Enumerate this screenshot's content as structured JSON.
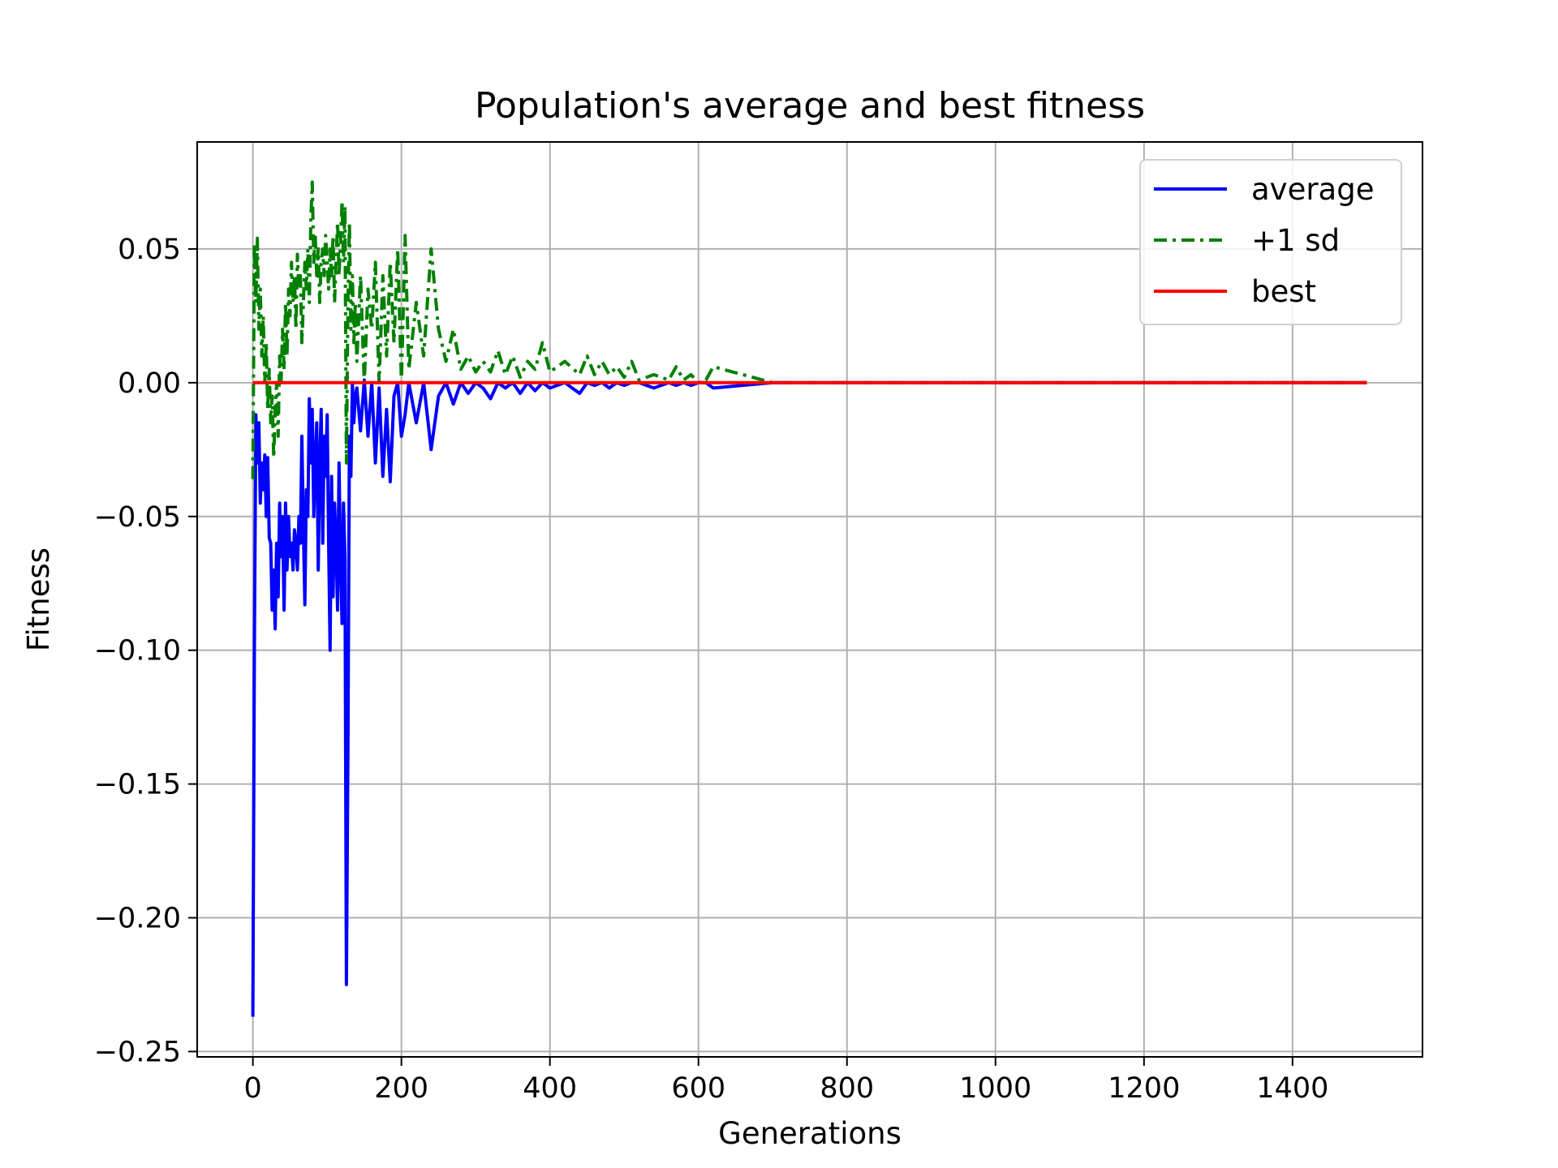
{
  "chart_data": {
    "type": "line",
    "title": "Population's average and best fitness",
    "xlabel": "Generations",
    "ylabel": "Fitness",
    "xlim": [
      -75,
      1575
    ],
    "ylim": [
      -0.252,
      0.09
    ],
    "xticks": [
      0,
      200,
      400,
      600,
      800,
      1000,
      1200,
      1400
    ],
    "yticks": [
      0.05,
      0.0,
      -0.05,
      -0.1,
      -0.15,
      -0.2,
      -0.25
    ],
    "xtick_labels": [
      "0",
      "200",
      "400",
      "600",
      "800",
      "1000",
      "1200",
      "1400"
    ],
    "ytick_labels": [
      "0.05",
      "0.00",
      "−0.05",
      "−0.10",
      "−0.15",
      "−0.20",
      "−0.25"
    ],
    "grid": true,
    "legend_position": "top-right",
    "series": [
      {
        "name": "average",
        "color": "#0000ff",
        "style": "solid",
        "x": [
          0,
          2,
          4,
          6,
          8,
          10,
          12,
          14,
          16,
          18,
          20,
          22,
          24,
          26,
          28,
          30,
          32,
          34,
          36,
          38,
          40,
          42,
          44,
          46,
          48,
          50,
          52,
          54,
          56,
          58,
          60,
          62,
          64,
          66,
          68,
          70,
          72,
          74,
          76,
          78,
          80,
          82,
          84,
          86,
          88,
          90,
          92,
          94,
          96,
          98,
          100,
          102,
          104,
          106,
          108,
          110,
          112,
          114,
          116,
          118,
          120,
          122,
          124,
          126,
          128,
          130,
          132,
          134,
          136,
          138,
          140,
          145,
          150,
          155,
          160,
          165,
          170,
          175,
          180,
          185,
          190,
          195,
          200,
          205,
          210,
          220,
          230,
          240,
          250,
          260,
          270,
          280,
          290,
          300,
          310,
          320,
          330,
          340,
          350,
          360,
          370,
          380,
          390,
          400,
          420,
          440,
          450,
          460,
          470,
          480,
          490,
          500,
          510,
          520,
          540,
          560,
          570,
          580,
          590,
          600,
          610,
          620,
          700,
          800,
          1000,
          1200,
          1400,
          1500
        ],
        "y": [
          -0.237,
          -0.1,
          -0.012,
          -0.03,
          -0.015,
          -0.045,
          -0.03,
          -0.04,
          -0.027,
          -0.05,
          -0.028,
          -0.058,
          -0.06,
          -0.085,
          -0.07,
          -0.092,
          -0.06,
          -0.08,
          -0.045,
          -0.065,
          -0.05,
          -0.085,
          -0.045,
          -0.07,
          -0.05,
          -0.065,
          -0.06,
          -0.07,
          -0.055,
          -0.06,
          -0.07,
          -0.05,
          -0.06,
          -0.02,
          -0.055,
          -0.083,
          -0.04,
          -0.05,
          -0.006,
          -0.03,
          -0.01,
          -0.05,
          -0.03,
          -0.015,
          -0.07,
          -0.03,
          -0.01,
          -0.06,
          -0.02,
          -0.035,
          -0.012,
          -0.06,
          -0.1,
          -0.035,
          -0.08,
          -0.045,
          -0.06,
          -0.085,
          -0.03,
          -0.065,
          -0.09,
          -0.045,
          -0.065,
          -0.225,
          -0.136,
          -0.02,
          -0.035,
          0.0,
          -0.015,
          -0.005,
          -0.002,
          -0.018,
          0.001,
          -0.02,
          0.0,
          -0.03,
          -0.002,
          -0.035,
          -0.01,
          -0.037,
          -0.005,
          0.0,
          -0.02,
          -0.012,
          0.0,
          -0.015,
          0.0,
          -0.025,
          -0.005,
          0.0,
          -0.008,
          0.0,
          -0.004,
          0.0,
          -0.002,
          -0.006,
          0.0,
          -0.002,
          0.0,
          -0.004,
          0.0,
          -0.003,
          0.0,
          -0.002,
          0.0,
          -0.004,
          0.0,
          -0.001,
          0.0,
          -0.002,
          0.0,
          -0.001,
          0.0,
          0.0,
          -0.002,
          0.0,
          -0.001,
          0.0,
          -0.001,
          0.0,
          0.0,
          -0.002,
          0.0,
          0.0,
          0.0,
          0.0,
          0.0,
          0.0
        ]
      },
      {
        "name": "+1 sd",
        "color": "#008000",
        "style": "dashdot",
        "x": [
          0,
          2,
          4,
          6,
          8,
          10,
          12,
          14,
          16,
          18,
          20,
          22,
          24,
          26,
          28,
          30,
          32,
          34,
          36,
          38,
          40,
          42,
          44,
          46,
          48,
          50,
          52,
          54,
          56,
          58,
          60,
          62,
          64,
          66,
          68,
          70,
          72,
          74,
          76,
          78,
          80,
          82,
          84,
          86,
          88,
          90,
          92,
          94,
          96,
          98,
          100,
          102,
          104,
          106,
          108,
          110,
          112,
          114,
          116,
          118,
          120,
          122,
          124,
          126,
          128,
          130,
          132,
          134,
          136,
          138,
          140,
          145,
          150,
          155,
          160,
          165,
          170,
          175,
          180,
          185,
          190,
          195,
          200,
          205,
          210,
          220,
          230,
          240,
          250,
          260,
          270,
          280,
          290,
          300,
          310,
          320,
          330,
          340,
          350,
          360,
          370,
          380,
          390,
          400,
          420,
          440,
          450,
          460,
          470,
          480,
          490,
          500,
          510,
          520,
          540,
          560,
          570,
          580,
          590,
          600,
          610,
          620,
          700,
          800,
          1000,
          1200,
          1400,
          1500
        ],
        "y": [
          -0.036,
          0.052,
          0.03,
          0.054,
          0.02,
          0.035,
          0.01,
          0.025,
          0.0,
          0.015,
          -0.01,
          0.005,
          -0.015,
          -0.005,
          -0.028,
          -0.01,
          0.0,
          -0.02,
          0.01,
          0.0,
          0.02,
          0.005,
          0.03,
          0.01,
          0.035,
          0.025,
          0.045,
          0.03,
          0.04,
          0.02,
          0.048,
          0.035,
          0.04,
          0.015,
          0.03,
          0.045,
          0.035,
          0.05,
          0.03,
          0.06,
          0.075,
          0.045,
          0.055,
          0.04,
          0.05,
          0.03,
          0.045,
          0.05,
          0.04,
          0.055,
          0.045,
          0.035,
          0.05,
          0.04,
          0.055,
          0.03,
          0.045,
          0.06,
          0.04,
          0.052,
          0.068,
          0.045,
          0.066,
          -0.03,
          0.03,
          0.06,
          0.02,
          0.04,
          0.015,
          0.03,
          0.008,
          0.04,
          0.0,
          0.035,
          0.02,
          0.045,
          0.0,
          0.04,
          0.01,
          0.045,
          0.015,
          0.05,
          0.0,
          0.055,
          0.005,
          0.03,
          0.01,
          0.05,
          0.02,
          0.008,
          0.02,
          0.005,
          0.01,
          0.004,
          0.008,
          0.004,
          0.012,
          0.003,
          0.01,
          0.002,
          0.008,
          0.005,
          0.015,
          0.004,
          0.008,
          0.003,
          0.01,
          0.003,
          0.008,
          0.003,
          0.006,
          0.002,
          0.008,
          0.001,
          0.003,
          0.001,
          0.006,
          0.001,
          0.003,
          0.0,
          0.001,
          0.006,
          0.0,
          0.0,
          0.0,
          0.0,
          0.0,
          0.0
        ]
      },
      {
        "name": "best",
        "color": "#ff0000",
        "style": "solid",
        "x": [
          0,
          1500
        ],
        "y": [
          0.0,
          0.0
        ]
      }
    ]
  }
}
